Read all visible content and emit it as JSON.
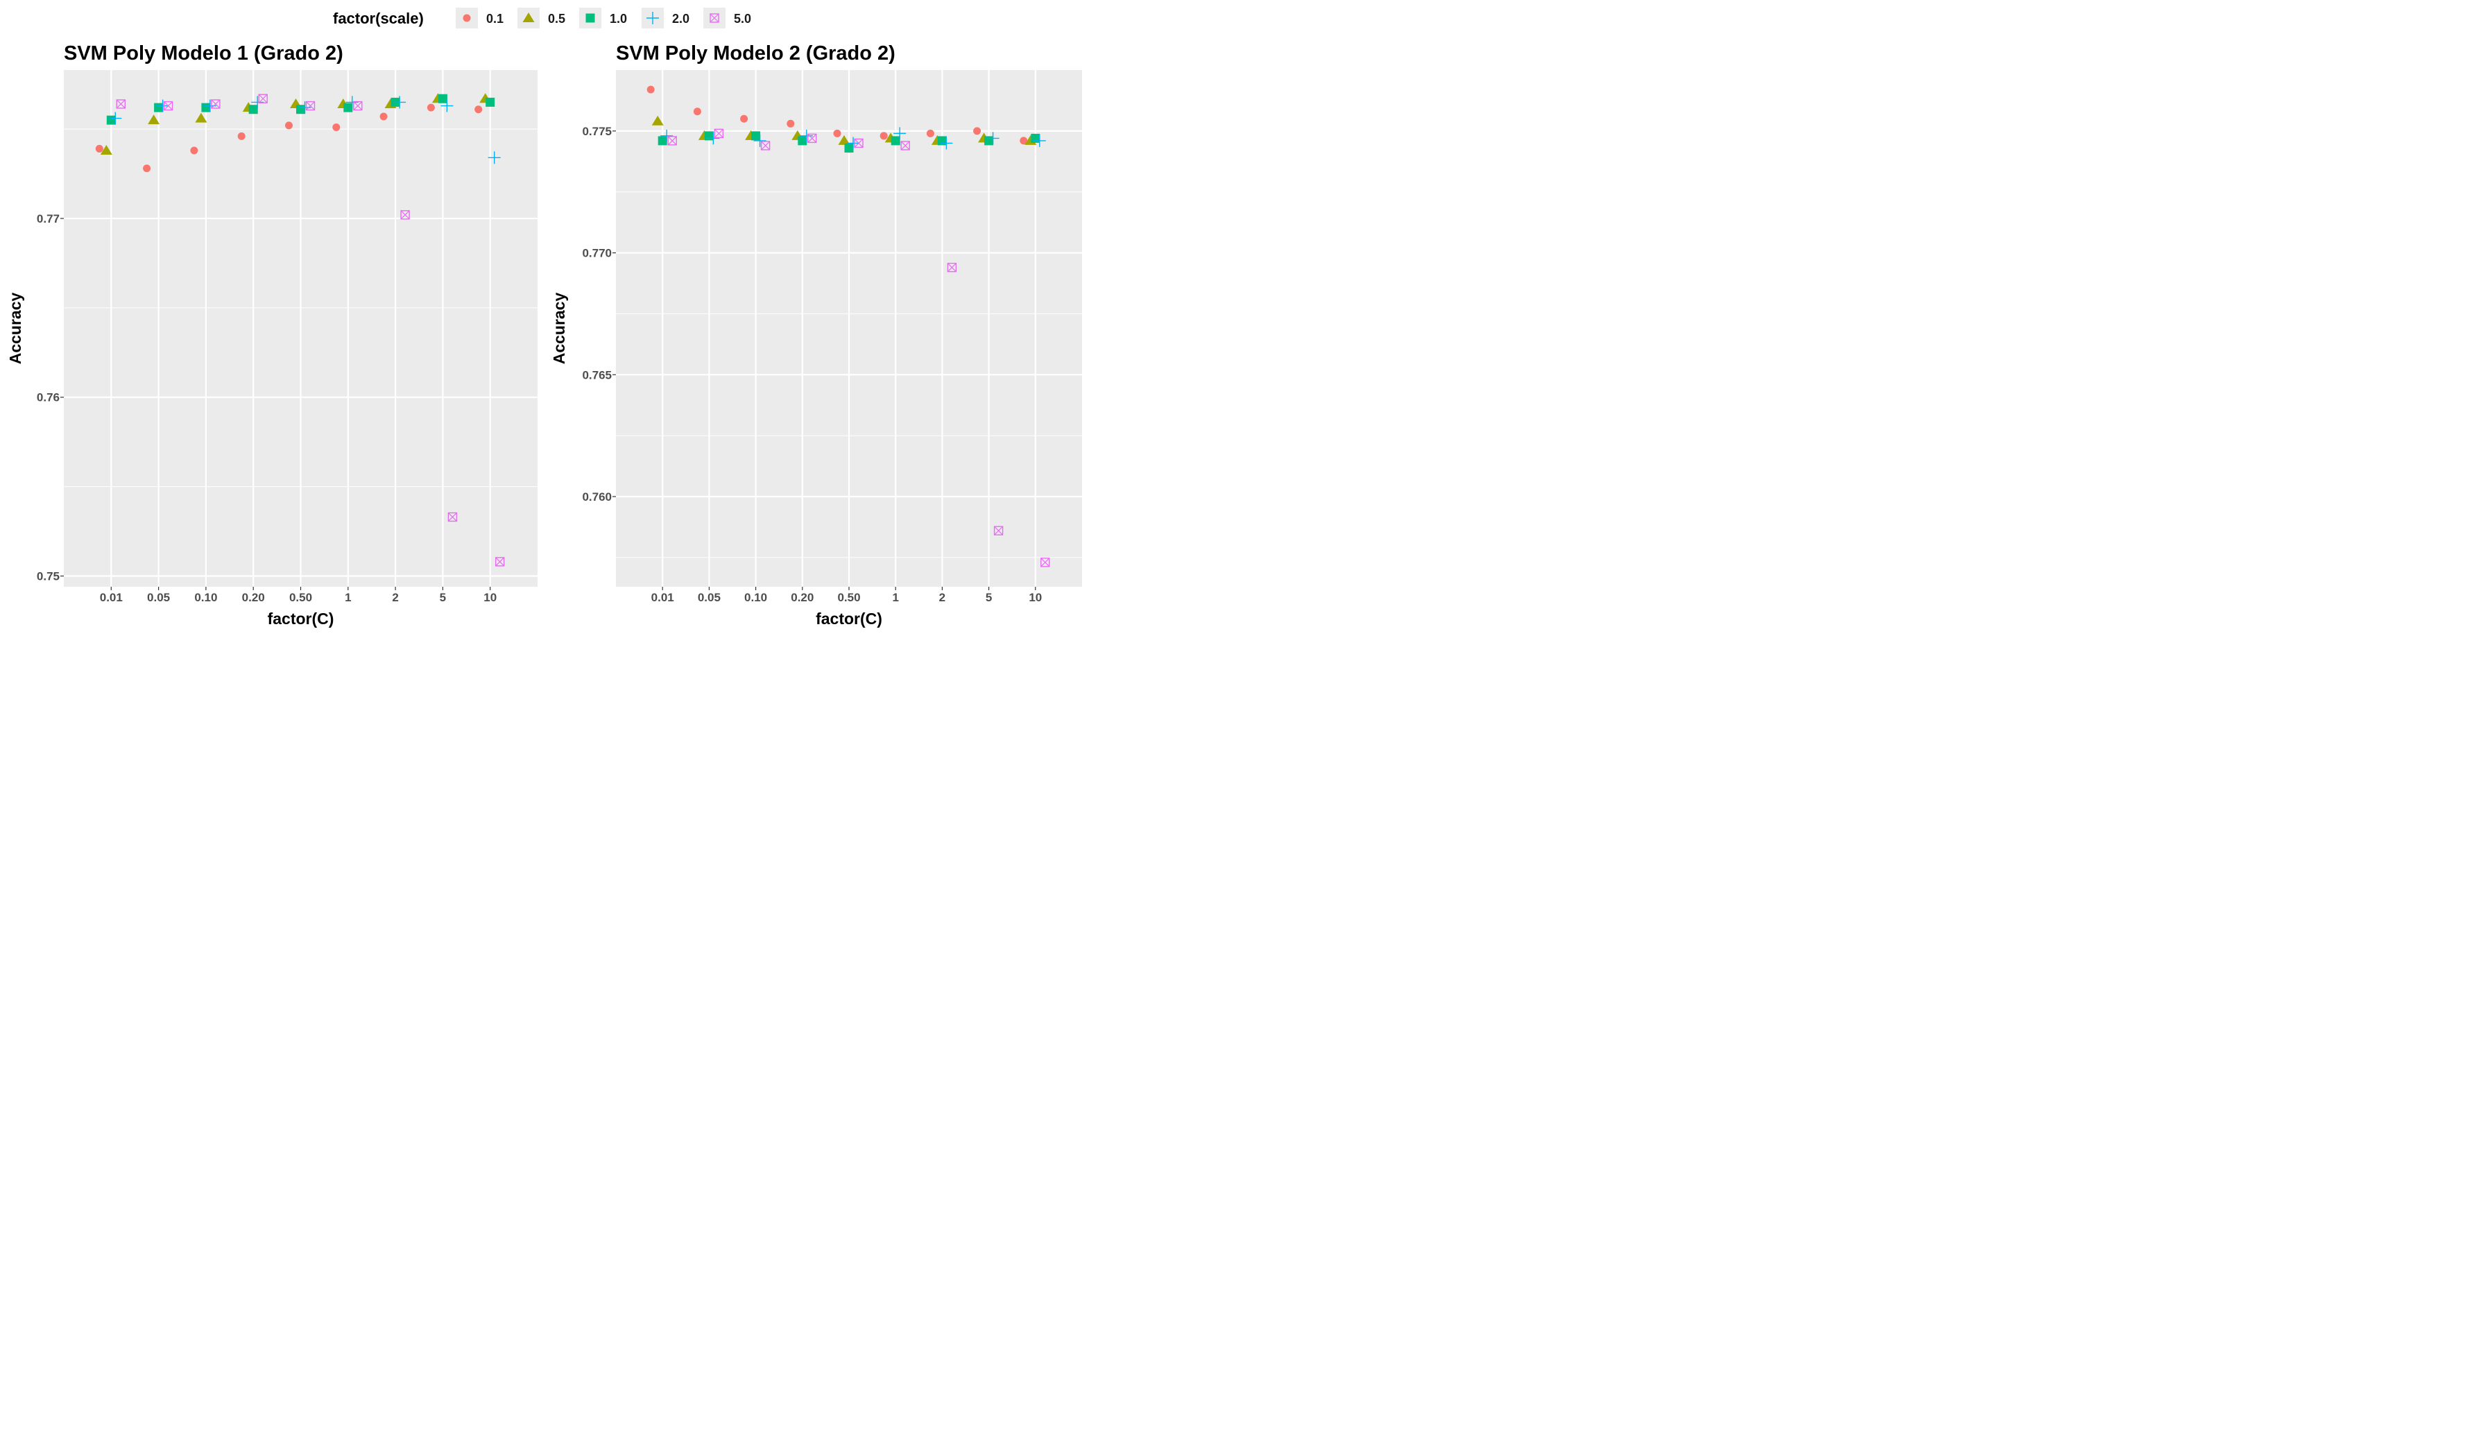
{
  "legend": {
    "title": "factor(scale)",
    "items": [
      {
        "label": "0.1",
        "color": "#F8766D",
        "shape": "circle-icon"
      },
      {
        "label": "0.5",
        "color": "#A3A500",
        "shape": "triangle-icon"
      },
      {
        "label": "1.0",
        "color": "#00BF7D",
        "shape": "square-icon"
      },
      {
        "label": "2.0",
        "color": "#00B0F6",
        "shape": "plus-icon"
      },
      {
        "label": "5.0",
        "color": "#E76BF3",
        "shape": "boxed-x-icon"
      }
    ]
  },
  "chart_data": [
    {
      "type": "scatter",
      "title": "SVM Poly Modelo 1 (Grado 2)",
      "xlabel": "factor(C)",
      "ylabel": "Accuracy",
      "categories": [
        "0.01",
        "0.05",
        "0.10",
        "0.20",
        "0.50",
        "1",
        "2",
        "5",
        "10"
      ],
      "ylim": [
        0.7494,
        0.7783
      ],
      "yticks": [
        0.75,
        0.76,
        0.77
      ],
      "ytick_labels": [
        "0.75",
        "0.76",
        "0.77"
      ],
      "grid": true,
      "series": [
        {
          "name": "0.1",
          "values": [
            0.7739,
            0.7728,
            0.7738,
            0.7746,
            0.7752,
            0.7751,
            0.7757,
            0.7762,
            0.7761
          ]
        },
        {
          "name": "0.5",
          "values": [
            0.7738,
            0.7755,
            0.7756,
            0.7762,
            0.7764,
            0.7764,
            0.7764,
            0.7767,
            0.7767
          ]
        },
        {
          "name": "1.0",
          "values": [
            0.7755,
            0.7762,
            0.7762,
            0.7761,
            0.7761,
            0.7762,
            0.7765,
            0.7767,
            0.7765
          ]
        },
        {
          "name": "2.0",
          "values": [
            0.7756,
            0.7763,
            0.7763,
            0.7765,
            0.7762,
            0.7765,
            0.7765,
            0.7763,
            0.7734
          ]
        },
        {
          "name": "5.0",
          "values": [
            0.7764,
            0.7763,
            0.7764,
            0.7767,
            0.7763,
            0.7763,
            0.7702,
            0.7533,
            0.7508
          ]
        }
      ]
    },
    {
      "type": "scatter",
      "title": "SVM Poly Modelo 2 (Grado 2)",
      "xlabel": "factor(C)",
      "ylabel": "Accuracy",
      "categories": [
        "0.01",
        "0.05",
        "0.10",
        "0.20",
        "0.50",
        "1",
        "2",
        "5",
        "10"
      ],
      "ylim": [
        0.7563,
        0.7775
      ],
      "yticks": [
        0.76,
        0.765,
        0.77,
        0.775
      ],
      "ytick_labels": [
        "0.760",
        "0.765",
        "0.770",
        "0.775"
      ],
      "grid": true,
      "series": [
        {
          "name": "0.1",
          "values": [
            0.7767,
            0.7758,
            0.7755,
            0.7753,
            0.7749,
            0.7748,
            0.7749,
            0.775,
            0.7746
          ]
        },
        {
          "name": "0.5",
          "values": [
            0.7754,
            0.7748,
            0.7748,
            0.7748,
            0.7746,
            0.7747,
            0.7746,
            0.7747,
            0.7746
          ]
        },
        {
          "name": "1.0",
          "values": [
            0.7746,
            0.7748,
            0.7748,
            0.7746,
            0.7743,
            0.7746,
            0.7746,
            0.7746,
            0.7747
          ]
        },
        {
          "name": "2.0",
          "values": [
            0.7748,
            0.7747,
            0.7746,
            0.7748,
            0.7745,
            0.7749,
            0.7745,
            0.7747,
            0.7746
          ]
        },
        {
          "name": "5.0",
          "values": [
            0.7746,
            0.7749,
            0.7744,
            0.7747,
            0.7745,
            0.7744,
            0.7694,
            0.7586,
            0.7573
          ]
        }
      ]
    }
  ]
}
